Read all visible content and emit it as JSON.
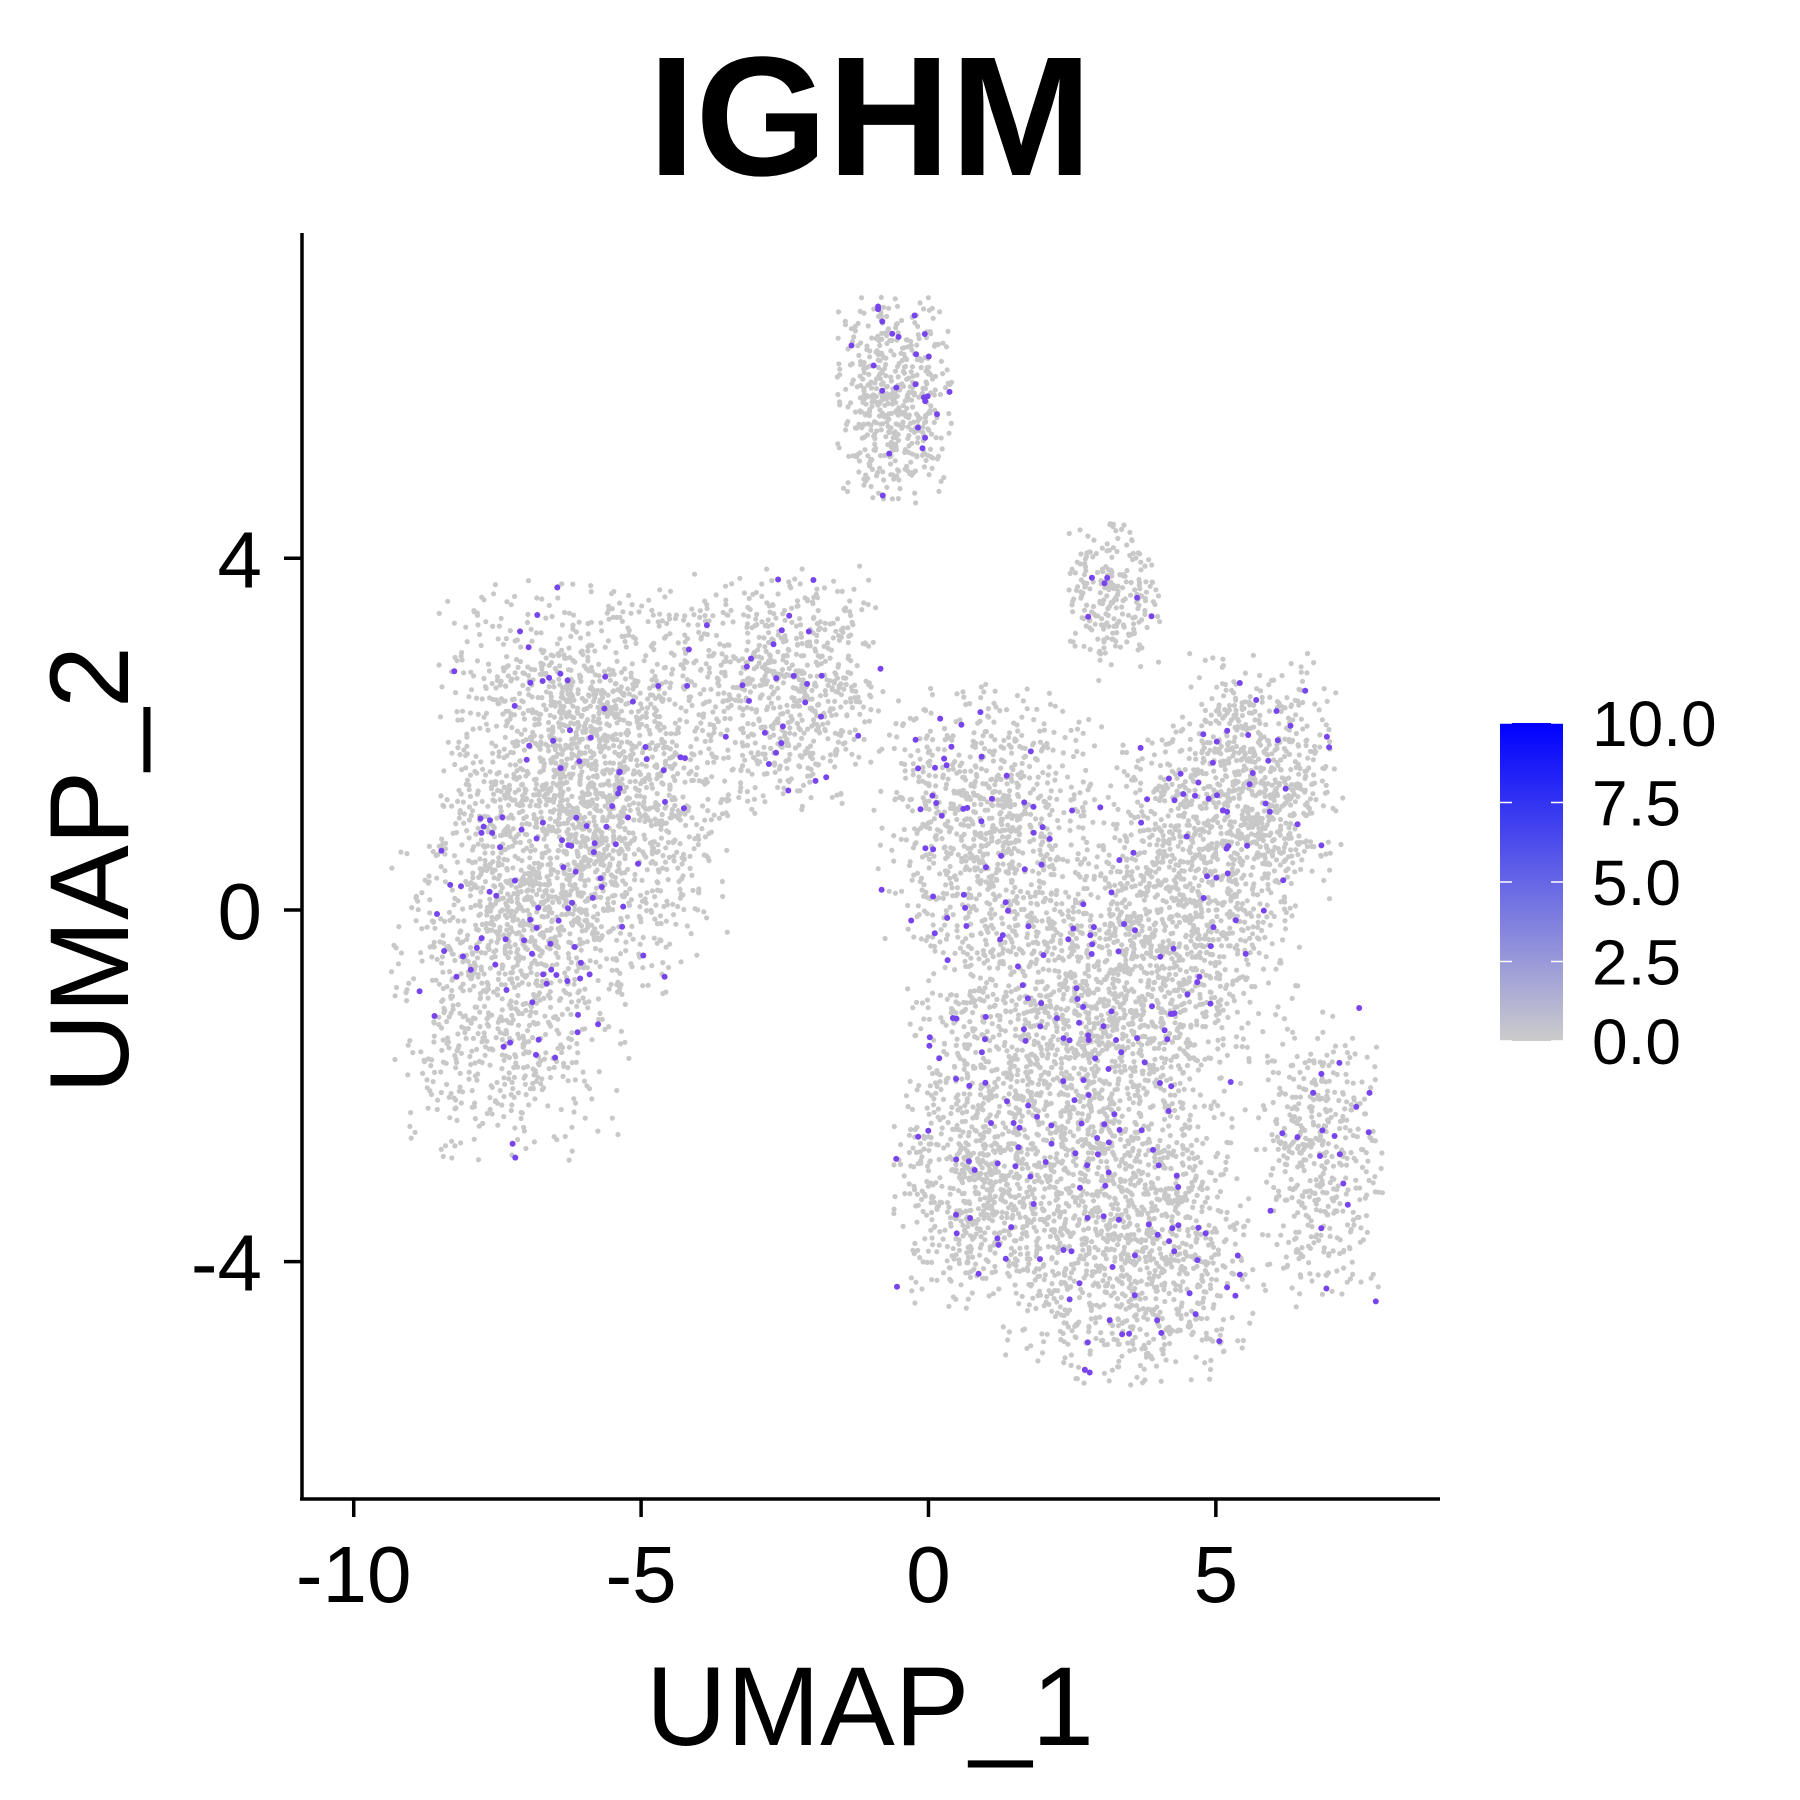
{
  "chart_data": {
    "type": "scatter",
    "title": "IGHM",
    "xlabel": "UMAP_1",
    "ylabel": "UMAP_2",
    "xlim": [
      -10.9,
      8.9
    ],
    "ylim": [
      -6.7,
      7.7
    ],
    "xticks": [
      -10,
      -5,
      0,
      5
    ],
    "yticks": [
      -4,
      0,
      4
    ],
    "xtick_labels": [
      "-10",
      "-5",
      "0",
      "5"
    ],
    "ytick_labels": [
      "-4",
      "0",
      "4"
    ],
    "grid": false,
    "legend": {
      "placement": "right",
      "type": "colorbar",
      "min": 0.0,
      "max": 10.0,
      "ticks": [
        0.0,
        2.5,
        5.0,
        7.5,
        10.0
      ],
      "tick_labels": [
        "0.0",
        "2.5",
        "5.0",
        "7.5",
        "10.0"
      ],
      "low_color": "#CCCCCC",
      "high_color": "#0000FF"
    },
    "background_point_color": "#C8C8C8",
    "expressing_point_color": "#7744EE",
    "clusters": [
      {
        "cx": -6.0,
        "cy": 1.4,
        "sx": 1.6,
        "sy": 1.5,
        "n": 2100
      },
      {
        "cx": -7.3,
        "cy": -0.8,
        "sx": 1.3,
        "sy": 1.3,
        "n": 900
      },
      {
        "cx": -2.5,
        "cy": 2.5,
        "sx": 1.1,
        "sy": 0.9,
        "n": 700
      },
      {
        "cx": -0.6,
        "cy": 5.8,
        "sx": 0.65,
        "sy": 0.75,
        "n": 520
      },
      {
        "cx": 1.0,
        "cy": 1.0,
        "sx": 1.2,
        "sy": 1.0,
        "n": 800
      },
      {
        "cx": 3.2,
        "cy": 3.6,
        "sx": 0.55,
        "sy": 0.55,
        "n": 230
      },
      {
        "cx": 2.6,
        "cy": -1.6,
        "sx": 1.9,
        "sy": 1.4,
        "n": 2000
      },
      {
        "cx": 4.5,
        "cy": 0.3,
        "sx": 1.3,
        "sy": 1.2,
        "n": 1000
      },
      {
        "cx": 5.8,
        "cy": 1.5,
        "sx": 0.9,
        "sy": 0.9,
        "n": 600
      },
      {
        "cx": 3.5,
        "cy": -4.0,
        "sx": 1.4,
        "sy": 0.9,
        "n": 900
      },
      {
        "cx": 6.8,
        "cy": -2.8,
        "sx": 0.7,
        "sy": 1.1,
        "n": 450
      },
      {
        "cx": 0.9,
        "cy": -3.3,
        "sx": 1.0,
        "sy": 0.8,
        "n": 500
      }
    ],
    "expressing_fraction": 0.035
  }
}
